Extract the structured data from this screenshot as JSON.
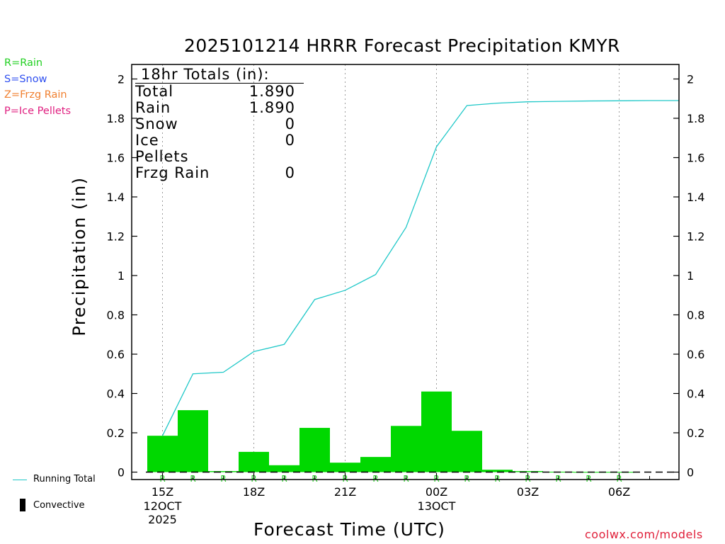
{
  "title": "2025101214 HRRR Forecast Precipitation KMYR",
  "precip_type_legend": [
    {
      "text": "R=Rain",
      "color": "#20d020"
    },
    {
      "text": "S=Snow",
      "color": "#3050f0"
    },
    {
      "text": "Z=Frzg Rain",
      "color": "#f08030"
    },
    {
      "text": "P=Ice Pellets",
      "color": "#e02080"
    }
  ],
  "totals": {
    "header": "18hr Totals (in):",
    "rows": [
      {
        "label": "Total",
        "value": "1.890"
      },
      {
        "label": "Rain",
        "value": "1.890"
      },
      {
        "label": "Snow",
        "value": "0"
      },
      {
        "label": "Ice Pellets",
        "value": "0"
      },
      {
        "label": "Frzg Rain",
        "value": "0"
      }
    ]
  },
  "bottom_legend": {
    "running_total": "Running Total",
    "convective": "Convective"
  },
  "credit": "coolwx.com/models",
  "colors": {
    "bars": "#00d800",
    "line": "#20c8c8",
    "rain_marker": "#20d020",
    "credit": "#e0203a"
  },
  "chart_data": {
    "type": "bar",
    "title": "2025101214 HRRR Forecast Precipitation KMYR",
    "xlabel": "Forecast Time (UTC)",
    "ylabel": "Precipitation (in)",
    "ylim": [
      0,
      2.1
    ],
    "yticks": [
      0,
      0.2,
      0.4,
      0.6,
      0.8,
      1,
      1.2,
      1.4,
      1.6,
      1.8,
      2
    ],
    "ytick_labels": [
      "0",
      "0.2",
      "0.4",
      "0.6",
      "0.8",
      "1",
      "1.2",
      "1.4",
      "1.6",
      "1.8",
      "2"
    ],
    "xlim": [
      14.5,
      31.5
    ],
    "xticks": [
      {
        "hour": 15,
        "label": "15Z",
        "sublabels": [
          "12OCT",
          "2025"
        ]
      },
      {
        "hour": 18,
        "label": "18Z",
        "sublabels": []
      },
      {
        "hour": 21,
        "label": "21Z",
        "sublabels": []
      },
      {
        "hour": 24,
        "label": "00Z",
        "sublabels": [
          "13OCT"
        ]
      },
      {
        "hour": 27,
        "label": "03Z",
        "sublabels": []
      },
      {
        "hour": 30,
        "label": "06Z",
        "sublabels": []
      }
    ],
    "hours": [
      15,
      16,
      17,
      18,
      19,
      20,
      21,
      22,
      23,
      24,
      25,
      26,
      27,
      28,
      29,
      30,
      31
    ],
    "series": [
      {
        "name": "Hourly Precipitation",
        "values": [
          0.185,
          0.315,
          0.005,
          0.103,
          0.035,
          0.225,
          0.048,
          0.077,
          0.235,
          0.41,
          0.21,
          0.012,
          0.005,
          0.002,
          0.001,
          0.001,
          0.0
        ]
      },
      {
        "name": "Running Total",
        "values": [
          0.185,
          0.5,
          0.508,
          0.613,
          0.65,
          0.878,
          0.925,
          1.005,
          1.245,
          1.655,
          1.865,
          1.877,
          1.884,
          1.886,
          1.888,
          1.889,
          1.89
        ]
      }
    ],
    "precip_type_markers": [
      "R",
      "R",
      "R",
      "R",
      "R",
      "R",
      "R",
      "R",
      "R",
      "R",
      "R",
      "R",
      "R",
      "R",
      "R",
      "R",
      "R"
    ],
    "grid": "vertical dotted at 3-hour ticks",
    "legend": "bottom-left"
  }
}
